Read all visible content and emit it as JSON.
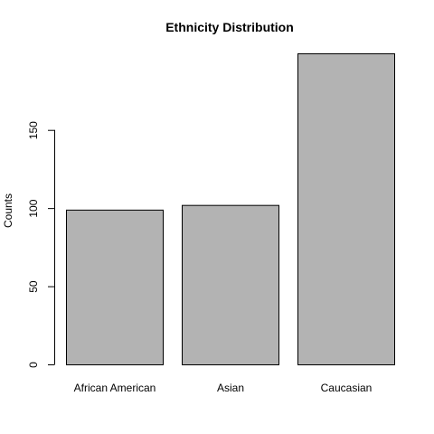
{
  "chart_data": {
    "type": "bar",
    "title": "Ethnicity Distribution",
    "xlabel": "",
    "ylabel": "Counts",
    "categories": [
      "African American",
      "Asian",
      "Caucasian"
    ],
    "values": [
      99,
      102,
      199
    ],
    "ylim": [
      0,
      199
    ],
    "yticks": [
      0,
      50,
      100,
      150
    ],
    "ytick_labels": [
      "0",
      "50",
      "100",
      "150"
    ],
    "grid": false,
    "colors": {
      "bar_fill": "#b3b3b3",
      "bar_stroke": "#000000",
      "axis": "#000000"
    }
  }
}
